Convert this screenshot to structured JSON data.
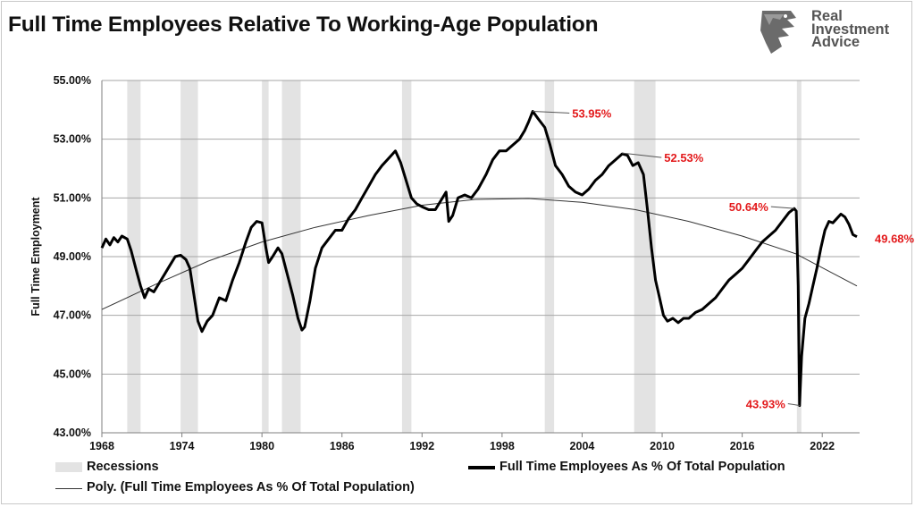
{
  "title": "Full Time Employees Relative To Working-Age Population",
  "logo": {
    "line1": "Real",
    "line2": "Investment",
    "line3": "Advice",
    "icon": "eagle-head-icon"
  },
  "chart_data": {
    "type": "line",
    "title": "Full Time Employees Relative To Working-Age Population",
    "ylabel": "Full Time Employment",
    "xlabel": "",
    "xlim": [
      1968,
      2024.8
    ],
    "ylim": [
      43,
      55
    ],
    "y_ticks": [
      "43.00%",
      "45.00%",
      "47.00%",
      "49.00%",
      "51.00%",
      "53.00%",
      "55.00%"
    ],
    "x_ticks": [
      "1968",
      "1974",
      "1980",
      "1986",
      "1992",
      "1998",
      "2004",
      "2010",
      "2016",
      "2022"
    ],
    "grid": "horizontal",
    "legend": {
      "recessions": "Recessions",
      "series": "Full Time Employees As % Of Total Population",
      "trend": "Poly. (Full Time Employees As % Of Total Population)"
    },
    "recessions": [
      [
        1969.9,
        1970.9
      ],
      [
        1973.9,
        1975.2
      ],
      [
        1980.0,
        1980.5
      ],
      [
        1981.5,
        1982.9
      ],
      [
        1990.5,
        1991.2
      ],
      [
        2001.2,
        2001.9
      ],
      [
        2007.9,
        2009.5
      ],
      [
        2020.1,
        2020.4
      ]
    ],
    "series": [
      {
        "name": "Full Time Employees As % Of Total Population",
        "color": "#000000",
        "points": [
          [
            1968.0,
            49.3
          ],
          [
            1968.3,
            49.6
          ],
          [
            1968.6,
            49.4
          ],
          [
            1968.9,
            49.65
          ],
          [
            1969.2,
            49.5
          ],
          [
            1969.5,
            49.7
          ],
          [
            1969.9,
            49.6
          ],
          [
            1970.2,
            49.2
          ],
          [
            1970.6,
            48.5
          ],
          [
            1970.9,
            48.0
          ],
          [
            1971.2,
            47.6
          ],
          [
            1971.5,
            47.9
          ],
          [
            1971.9,
            47.8
          ],
          [
            1972.3,
            48.1
          ],
          [
            1972.7,
            48.4
          ],
          [
            1973.1,
            48.7
          ],
          [
            1973.5,
            49.0
          ],
          [
            1973.9,
            49.05
          ],
          [
            1974.3,
            48.9
          ],
          [
            1974.6,
            48.6
          ],
          [
            1974.9,
            47.7
          ],
          [
            1975.2,
            46.8
          ],
          [
            1975.5,
            46.45
          ],
          [
            1975.9,
            46.8
          ],
          [
            1976.3,
            47.0
          ],
          [
            1976.8,
            47.6
          ],
          [
            1977.3,
            47.5
          ],
          [
            1977.8,
            48.2
          ],
          [
            1978.3,
            48.8
          ],
          [
            1978.8,
            49.5
          ],
          [
            1979.2,
            50.0
          ],
          [
            1979.6,
            50.2
          ],
          [
            1980.0,
            50.15
          ],
          [
            1980.3,
            49.3
          ],
          [
            1980.5,
            48.8
          ],
          [
            1980.8,
            49.0
          ],
          [
            1981.2,
            49.3
          ],
          [
            1981.5,
            49.1
          ],
          [
            1981.9,
            48.4
          ],
          [
            1982.3,
            47.7
          ],
          [
            1982.7,
            46.9
          ],
          [
            1983.0,
            46.5
          ],
          [
            1983.2,
            46.6
          ],
          [
            1983.6,
            47.5
          ],
          [
            1984.0,
            48.6
          ],
          [
            1984.5,
            49.3
          ],
          [
            1985.0,
            49.6
          ],
          [
            1985.5,
            49.9
          ],
          [
            1986.0,
            49.9
          ],
          [
            1986.5,
            50.3
          ],
          [
            1987.0,
            50.6
          ],
          [
            1987.5,
            51.0
          ],
          [
            1988.0,
            51.4
          ],
          [
            1988.5,
            51.8
          ],
          [
            1989.0,
            52.1
          ],
          [
            1989.6,
            52.4
          ],
          [
            1990.0,
            52.6
          ],
          [
            1990.4,
            52.2
          ],
          [
            1990.8,
            51.6
          ],
          [
            1991.2,
            51.0
          ],
          [
            1991.6,
            50.8
          ],
          [
            1992.0,
            50.7
          ],
          [
            1992.5,
            50.6
          ],
          [
            1993.0,
            50.6
          ],
          [
            1993.4,
            50.9
          ],
          [
            1993.8,
            51.2
          ],
          [
            1994.0,
            50.2
          ],
          [
            1994.3,
            50.4
          ],
          [
            1994.7,
            51.0
          ],
          [
            1995.2,
            51.1
          ],
          [
            1995.7,
            51.0
          ],
          [
            1996.2,
            51.3
          ],
          [
            1996.8,
            51.8
          ],
          [
            1997.3,
            52.3
          ],
          [
            1997.8,
            52.6
          ],
          [
            1998.3,
            52.6
          ],
          [
            1998.8,
            52.8
          ],
          [
            1999.3,
            53.0
          ],
          [
            1999.7,
            53.3
          ],
          [
            2000.0,
            53.6
          ],
          [
            2000.3,
            53.95
          ],
          [
            2000.7,
            53.7
          ],
          [
            2001.2,
            53.4
          ],
          [
            2001.6,
            52.8
          ],
          [
            2002.0,
            52.1
          ],
          [
            2002.5,
            51.8
          ],
          [
            2003.0,
            51.4
          ],
          [
            2003.5,
            51.2
          ],
          [
            2004.0,
            51.1
          ],
          [
            2004.5,
            51.3
          ],
          [
            2005.0,
            51.6
          ],
          [
            2005.5,
            51.8
          ],
          [
            2006.0,
            52.1
          ],
          [
            2006.5,
            52.3
          ],
          [
            2007.0,
            52.5
          ],
          [
            2007.4,
            52.45
          ],
          [
            2007.8,
            52.1
          ],
          [
            2008.2,
            52.2
          ],
          [
            2008.6,
            51.8
          ],
          [
            2008.9,
            50.6
          ],
          [
            2009.2,
            49.3
          ],
          [
            2009.5,
            48.2
          ],
          [
            2009.8,
            47.6
          ],
          [
            2010.1,
            47.0
          ],
          [
            2010.4,
            46.8
          ],
          [
            2010.8,
            46.9
          ],
          [
            2011.2,
            46.75
          ],
          [
            2011.6,
            46.9
          ],
          [
            2012.0,
            46.9
          ],
          [
            2012.5,
            47.1
          ],
          [
            2013.0,
            47.2
          ],
          [
            2013.5,
            47.4
          ],
          [
            2014.0,
            47.6
          ],
          [
            2014.5,
            47.9
          ],
          [
            2015.0,
            48.2
          ],
          [
            2015.5,
            48.4
          ],
          [
            2016.0,
            48.6
          ],
          [
            2016.5,
            48.9
          ],
          [
            2017.0,
            49.2
          ],
          [
            2017.5,
            49.5
          ],
          [
            2018.0,
            49.7
          ],
          [
            2018.5,
            49.9
          ],
          [
            2019.0,
            50.2
          ],
          [
            2019.5,
            50.5
          ],
          [
            2019.9,
            50.64
          ],
          [
            2020.05,
            50.55
          ],
          [
            2020.2,
            48.0
          ],
          [
            2020.3,
            43.93
          ],
          [
            2020.45,
            45.6
          ],
          [
            2020.7,
            46.9
          ],
          [
            2021.0,
            47.4
          ],
          [
            2021.3,
            48.0
          ],
          [
            2021.6,
            48.6
          ],
          [
            2021.9,
            49.3
          ],
          [
            2022.2,
            49.9
          ],
          [
            2022.5,
            50.2
          ],
          [
            2022.8,
            50.15
          ],
          [
            2023.1,
            50.3
          ],
          [
            2023.4,
            50.45
          ],
          [
            2023.7,
            50.35
          ],
          [
            2024.0,
            50.1
          ],
          [
            2024.3,
            49.75
          ],
          [
            2024.6,
            49.68
          ]
        ]
      },
      {
        "name": "Poly. (Full Time Employees As % Of Total Population)",
        "color": "#333333",
        "points": [
          [
            1968,
            47.2
          ],
          [
            1972,
            48.05
          ],
          [
            1976,
            48.85
          ],
          [
            1980,
            49.5
          ],
          [
            1984,
            50.0
          ],
          [
            1988,
            50.4
          ],
          [
            1992,
            50.75
          ],
          [
            1996,
            50.95
          ],
          [
            2000,
            50.98
          ],
          [
            2004,
            50.85
          ],
          [
            2008,
            50.6
          ],
          [
            2012,
            50.2
          ],
          [
            2016,
            49.7
          ],
          [
            2020,
            49.1
          ],
          [
            2024.6,
            48.0
          ]
        ]
      }
    ],
    "annotations": [
      {
        "text": "53.95%",
        "x": 2000.3,
        "y": 53.95,
        "color": "#e31a1c"
      },
      {
        "text": "52.53%",
        "x": 2007.0,
        "y": 52.53,
        "color": "#e31a1c"
      },
      {
        "text": "50.64%",
        "x": 2019.9,
        "y": 50.64,
        "color": "#e31a1c"
      },
      {
        "text": "49.68%",
        "x": 2024.6,
        "y": 49.68,
        "color": "#e31a1c"
      },
      {
        "text": "43.93%",
        "x": 2020.3,
        "y": 43.93,
        "color": "#e31a1c"
      }
    ]
  }
}
